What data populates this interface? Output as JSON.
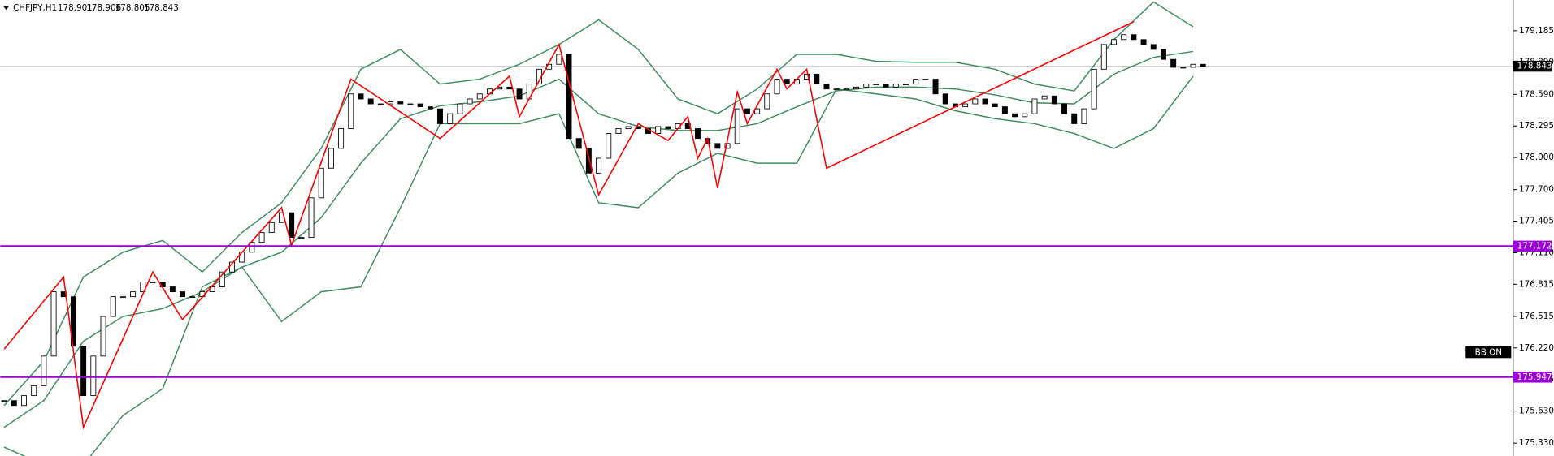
{
  "chart_data": {
    "type": "candlestick",
    "symbol": "CHFJPY,H1",
    "ohlc": [
      178.901,
      178.906,
      178.805,
      178.843
    ],
    "ylim": [
      175.21,
      179.472
    ],
    "yticks": [
      {
        "value": 179.185,
        "label": "179.185"
      },
      {
        "value": 178.89,
        "label": "178.890"
      },
      {
        "value": 178.59,
        "label": "178.590"
      },
      {
        "value": 178.295,
        "label": "178.295"
      },
      {
        "value": 178.0,
        "label": "178.000"
      },
      {
        "value": 177.7,
        "label": "177.700"
      },
      {
        "value": 177.405,
        "label": "177.405"
      },
      {
        "value": 177.11,
        "label": "177.110"
      },
      {
        "value": 176.815,
        "label": "176.815"
      },
      {
        "value": 176.515,
        "label": "176.515"
      },
      {
        "value": 176.22,
        "label": "176.220"
      },
      {
        "value": 175.925,
        "label": "175.925"
      },
      {
        "value": 175.63,
        "label": "175.630"
      },
      {
        "value": 175.33,
        "label": "175.330"
      }
    ],
    "close": [
      175.728,
      175.682,
      175.774,
      175.867,
      176.144,
      176.745,
      176.699,
      176.236,
      175.774,
      176.144,
      176.514,
      176.699,
      176.699,
      176.745,
      176.837,
      176.837,
      176.791,
      176.745,
      176.699,
      176.699,
      176.745,
      176.791,
      176.93,
      177.022,
      177.115,
      177.207,
      177.299,
      177.392,
      177.484,
      177.253,
      177.253,
      177.623,
      177.9,
      178.085,
      178.27,
      178.594,
      178.547,
      178.501,
      178.501,
      178.52,
      178.501,
      178.501,
      178.474,
      178.455,
      178.316,
      178.409,
      178.501,
      178.547,
      178.594,
      178.64,
      178.658,
      178.64,
      178.547,
      178.686,
      178.825,
      178.871,
      178.964,
      178.178,
      178.085,
      177.854,
      177.993,
      178.224,
      178.27,
      178.289,
      178.27,
      178.224,
      178.289,
      178.27,
      178.316,
      178.27,
      178.178,
      178.131,
      178.085,
      178.131,
      178.455,
      178.409,
      178.455,
      178.594,
      178.732,
      178.686,
      178.732,
      178.779,
      178.686,
      178.64,
      178.64,
      178.64,
      178.658,
      178.686,
      178.686,
      178.658,
      178.686,
      178.686,
      178.732,
      178.732,
      178.594,
      178.501,
      178.474,
      178.501,
      178.547,
      178.501,
      178.474,
      178.409,
      178.381,
      178.409,
      178.547,
      178.575,
      178.501,
      178.409,
      178.316,
      178.455,
      178.825,
      179.056,
      179.102,
      179.148,
      179.102,
      179.056,
      179.01,
      178.917,
      178.843,
      178.843,
      178.871,
      178.853
    ],
    "candle_colors": {
      "up": "#ffffff",
      "down": "#000000",
      "outline": "#000000"
    },
    "bands": {
      "color": "#3d8c5f",
      "upper": [
        175.682,
        176.098,
        176.883,
        177.115,
        177.225,
        176.93,
        177.299,
        177.577,
        178.085,
        178.825,
        179.01,
        178.686,
        178.732,
        178.871,
        179.056,
        179.287,
        179.01,
        178.547,
        178.409,
        178.64,
        178.964,
        178.964,
        178.899,
        178.89,
        178.89,
        178.825,
        178.686,
        178.622,
        179.102,
        179.454,
        179.222
      ],
      "middle": [
        175.478,
        175.728,
        176.283,
        176.514,
        176.588,
        176.745,
        176.976,
        177.115,
        177.438,
        177.947,
        178.363,
        178.483,
        178.52,
        178.575,
        178.732,
        178.409,
        178.289,
        178.252,
        178.252,
        178.316,
        178.474,
        178.622,
        178.658,
        178.658,
        178.64,
        178.585,
        178.511,
        178.501,
        178.779,
        178.936,
        178.991
      ],
      "lower": [
        175.293,
        175.127,
        175.127,
        175.589,
        175.839,
        176.791,
        176.976,
        176.467,
        176.745,
        176.791,
        177.531,
        178.316,
        178.316,
        178.316,
        178.409,
        177.577,
        177.531,
        177.854,
        178.039,
        177.947,
        177.947,
        178.64,
        178.594,
        178.547,
        178.437,
        178.363,
        178.316,
        178.224,
        178.085,
        178.27,
        178.76
      ]
    },
    "zigzag": {
      "color": "#ff0000",
      "x": [
        0,
        6,
        8,
        15,
        18,
        28,
        29,
        35,
        44,
        51,
        52,
        56,
        60,
        64,
        67,
        69,
        70,
        71,
        72,
        74,
        75,
        78,
        79,
        81,
        83,
        114
      ],
      "values": [
        176.209,
        176.883,
        175.478,
        176.93,
        176.486,
        177.531,
        177.179,
        178.732,
        178.178,
        178.76,
        178.381,
        179.056,
        177.651,
        178.316,
        178.159,
        178.381,
        177.993,
        178.178,
        177.715,
        178.612,
        178.316,
        178.825,
        178.64,
        178.825,
        177.9,
        179.269
      ]
    },
    "levels": [
      {
        "value": 177.172,
        "color": "#9b00d9"
      },
      {
        "value": 175.947,
        "color": "#9b00d9"
      }
    ],
    "last_price_color": "#c0c0c0",
    "indicator_label": "BB ON"
  }
}
